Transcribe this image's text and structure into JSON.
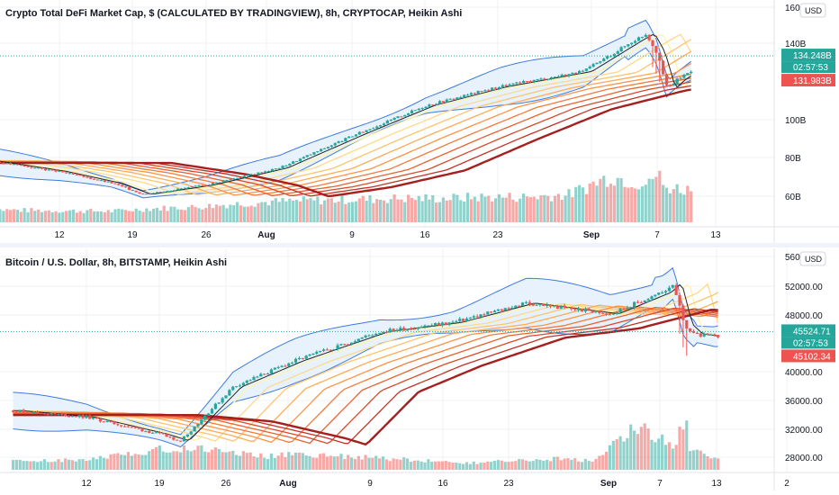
{
  "colors": {
    "up": "#26a69a",
    "down": "#ef5350",
    "band": "#3d7be0",
    "band_fill": "#e3f0fb",
    "grid": "#eef1f5",
    "price_line": "#26a69a",
    "ribbon": [
      "#fff2a8",
      "#ffd98a",
      "#ffc46b",
      "#ffab55",
      "#ff9245",
      "#f57a3a",
      "#e96131",
      "#d94a2a",
      "#c23325",
      "#a61f1f"
    ]
  },
  "chart_data": [
    {
      "type": "candlestick",
      "title": "Crypto Total DeFi Market Cap, $ (CALCULATED BY TRADINGVIEW), 8h, CRYPTOCAP, Heikin Ashi",
      "currency": "USD",
      "x_ticks": [
        {
          "label": "12",
          "bold": false
        },
        {
          "label": "19",
          "bold": false
        },
        {
          "label": "26",
          "bold": false
        },
        {
          "label": "Aug",
          "bold": true
        },
        {
          "label": "9",
          "bold": false
        },
        {
          "label": "16",
          "bold": false
        },
        {
          "label": "23",
          "bold": false
        },
        {
          "label": "Sep",
          "bold": true
        },
        {
          "label": "7",
          "bold": false
        },
        {
          "label": "13",
          "bold": false
        }
      ],
      "y_ticks": [
        "160B",
        "140B",
        "100B",
        "80B",
        "60B"
      ],
      "y_range": [
        50,
        165
      ],
      "price_badges": [
        {
          "label": "134.248B",
          "value": 134.25,
          "kind": "up"
        },
        {
          "label": "02:57:53",
          "kind": "timer"
        },
        {
          "label": "131.983B",
          "value": 131.98,
          "kind": "down"
        }
      ],
      "trend_anchors_dates": [
        "Jul 5",
        "Jul 12",
        "Jul 17",
        "Jul 20",
        "Jul 26",
        "Aug 2",
        "Aug 9",
        "Aug 16",
        "Aug 23",
        "Aug 31",
        "Sep 5",
        "Sep 6",
        "Sep 7",
        "Sep 8",
        "Sep 9",
        "Sep 11",
        "Sep 12"
      ],
      "trend_anchors_values": [
        79,
        73,
        67,
        61,
        66,
        75,
        92,
        108,
        118,
        126,
        143,
        146,
        136,
        117,
        122,
        129,
        134
      ],
      "volume_profile": [
        0.28,
        0.26,
        0.25,
        0.24,
        0.3,
        0.33,
        0.4,
        0.45,
        0.48,
        0.5,
        0.52,
        0.52,
        0.55,
        0.55,
        0.6,
        1.0,
        0.8,
        0.7
      ],
      "spike_date": "Sep 7"
    },
    {
      "type": "candlestick",
      "title": "Bitcoin / U.S. Dollar, 8h, BITSTAMP, Heikin Ashi",
      "currency": "USD",
      "x_ticks": [
        {
          "label": "12",
          "bold": false
        },
        {
          "label": "19",
          "bold": false
        },
        {
          "label": "26",
          "bold": false
        },
        {
          "label": "Aug",
          "bold": true
        },
        {
          "label": "9",
          "bold": false
        },
        {
          "label": "16",
          "bold": false
        },
        {
          "label": "23",
          "bold": false
        },
        {
          "label": "Sep",
          "bold": true
        },
        {
          "label": "7",
          "bold": false
        },
        {
          "label": "13",
          "bold": false
        },
        {
          "label": "2",
          "bold": false
        }
      ],
      "y_ticks": [
        "56000.00",
        "52000.00",
        "48000.00",
        "40000.00",
        "36000.00",
        "32000.00",
        "28000.00"
      ],
      "y_range": [
        26000,
        57000
      ],
      "price_badges": [
        {
          "label": "45524.71",
          "value": 45524.71,
          "kind": "up"
        },
        {
          "label": "02:57:53",
          "kind": "timer"
        },
        {
          "label": "45102.34",
          "value": 45102.34,
          "kind": "down"
        }
      ],
      "trend_anchors_dates": [
        "Jul 5",
        "Jul 12",
        "Jul 19",
        "Jul 21",
        "Jul 26",
        "Aug 1",
        "Aug 9",
        "Aug 16",
        "Aug 23",
        "Aug 31",
        "Sep 5",
        "Sep 6",
        "Sep 7",
        "Sep 8",
        "Sep 10",
        "Sep 12"
      ],
      "trend_anchors_values": [
        34500,
        33600,
        31200,
        30300,
        37800,
        41500,
        45500,
        46800,
        49500,
        48000,
        51000,
        52300,
        46600,
        45200,
        44800,
        45500
      ],
      "volume_profile": [
        0.2,
        0.2,
        0.25,
        0.4,
        0.5,
        0.45,
        0.3,
        0.35,
        0.3,
        0.25,
        0.2,
        0.15,
        0.2,
        0.25,
        0.2,
        1.0,
        0.5,
        0.25
      ],
      "spike_date": "Sep 7"
    }
  ]
}
